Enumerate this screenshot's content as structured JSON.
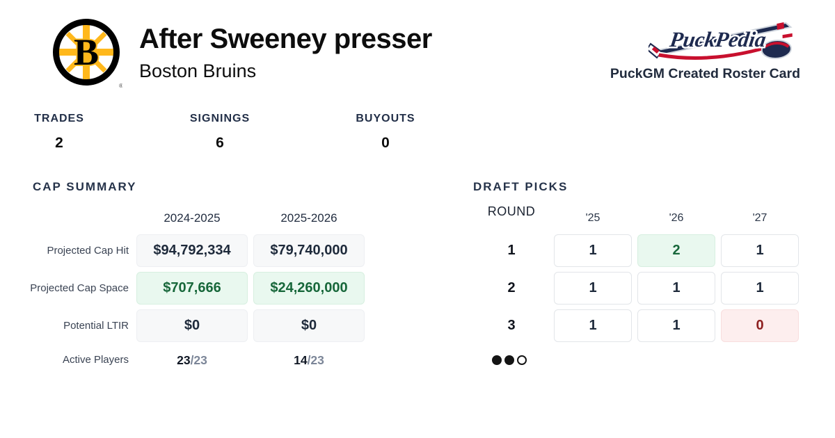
{
  "header": {
    "title": "After Sweeney presser",
    "subtitle": "Boston Bruins",
    "team_logo": "boston-bruins-logo",
    "brand_name": "PuckPedia",
    "brand_caption": "PuckGM Created Roster Card"
  },
  "stats": [
    {
      "label": "TRADES",
      "value": "2"
    },
    {
      "label": "SIGNINGS",
      "value": "6"
    },
    {
      "label": "BUYOUTS",
      "value": "0"
    }
  ],
  "cap_summary": {
    "title": "CAP SUMMARY",
    "columns": [
      "2024-2025",
      "2025-2026"
    ],
    "rows": [
      {
        "label": "Projected Cap Hit",
        "values": [
          "$94,792,334",
          "$79,740,000"
        ],
        "styles": [
          "neutral",
          "neutral"
        ]
      },
      {
        "label": "Projected Cap Space",
        "values": [
          "$707,666",
          "$24,260,000"
        ],
        "styles": [
          "positive",
          "positive"
        ]
      },
      {
        "label": "Potential LTIR",
        "values": [
          "$0",
          "$0"
        ],
        "styles": [
          "neutral",
          "neutral"
        ]
      }
    ],
    "active_players": {
      "label": "Active Players",
      "values": [
        {
          "current": "23",
          "total": "/23"
        },
        {
          "current": "14",
          "total": "/23"
        }
      ]
    }
  },
  "draft_picks": {
    "title": "DRAFT PICKS",
    "round_header": "ROUND",
    "columns": [
      "'25",
      "'26",
      "'27"
    ],
    "rows": [
      {
        "round": "1",
        "values": [
          "1",
          "2",
          "1"
        ],
        "styles": [
          "normal",
          "positive",
          "normal"
        ]
      },
      {
        "round": "2",
        "values": [
          "1",
          "1",
          "1"
        ],
        "styles": [
          "normal",
          "normal",
          "normal"
        ]
      },
      {
        "round": "3",
        "values": [
          "1",
          "1",
          "0"
        ],
        "styles": [
          "normal",
          "normal",
          "negative"
        ]
      }
    ]
  },
  "pagination": {
    "dots": [
      "filled",
      "filled",
      "empty"
    ]
  },
  "colors": {
    "positive_text": "#17673a",
    "positive_bg": "#e9f8ef",
    "negative_text": "#8e2020",
    "negative_bg": "#fdeeee",
    "neutral_bg": "#f7f8f9",
    "bruins_gold": "#FFB81C",
    "brand_navy": "#1e2a4f",
    "brand_red": "#c8102e",
    "heading_navy": "#26334a"
  }
}
